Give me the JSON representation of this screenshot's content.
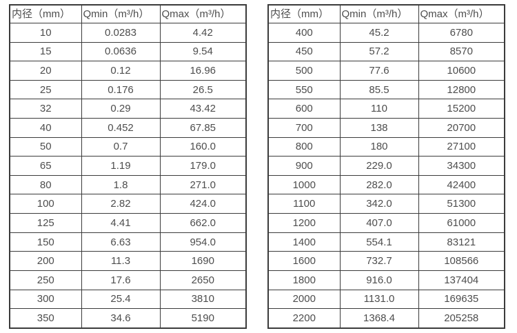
{
  "page": {
    "background_color": "#ffffff",
    "border_color": "#3a3a3a",
    "text_color": "#4d4d4d"
  },
  "tables": [
    {
      "name": "small-diameter-spec-table",
      "headers": [
        "内径（mm）",
        "Qmin（m³/h）",
        "Qmax（m³/h）"
      ],
      "rows": [
        [
          "10",
          "0.0283",
          "4.42"
        ],
        [
          "15",
          "0.0636",
          "9.54"
        ],
        [
          "20",
          "0.12",
          "16.96"
        ],
        [
          "25",
          "0.176",
          "26.5"
        ],
        [
          "32",
          "0.29",
          "43.42"
        ],
        [
          "40",
          "0.452",
          "67.85"
        ],
        [
          "50",
          "0.7",
          "160.0"
        ],
        [
          "65",
          "1.19",
          "179.0"
        ],
        [
          "80",
          "1.8",
          "271.0"
        ],
        [
          "100",
          "2.82",
          "424.0"
        ],
        [
          "125",
          "4.41",
          "662.0"
        ],
        [
          "150",
          "6.63",
          "954.0"
        ],
        [
          "200",
          "11.3",
          "1690"
        ],
        [
          "250",
          "17.6",
          "2650"
        ],
        [
          "300",
          "25.4",
          "3810"
        ],
        [
          "350",
          "34.6",
          "5190"
        ]
      ]
    },
    {
      "name": "large-diameter-spec-table",
      "headers": [
        "内径（mm）",
        "Qmin（m³/h）",
        "Qmax（m³/h）"
      ],
      "rows": [
        [
          "400",
          "45.2",
          "6780"
        ],
        [
          "450",
          "57.2",
          "8570"
        ],
        [
          "500",
          "77.6",
          "10600"
        ],
        [
          "550",
          "85.5",
          "12800"
        ],
        [
          "600",
          "110",
          "15200"
        ],
        [
          "700",
          "138",
          "20700"
        ],
        [
          "800",
          "180",
          "27100"
        ],
        [
          "900",
          "229.0",
          "34300"
        ],
        [
          "1000",
          "282.0",
          "42400"
        ],
        [
          "1100",
          "342.0",
          "51300"
        ],
        [
          "1200",
          "407.0",
          "61000"
        ],
        [
          "1400",
          "554.1",
          "83121"
        ],
        [
          "1600",
          "732.7",
          "108566"
        ],
        [
          "1800",
          "916.0",
          "137404"
        ],
        [
          "2000",
          "1131.0",
          "169635"
        ],
        [
          "2200",
          "1368.4",
          "205258"
        ]
      ]
    }
  ]
}
